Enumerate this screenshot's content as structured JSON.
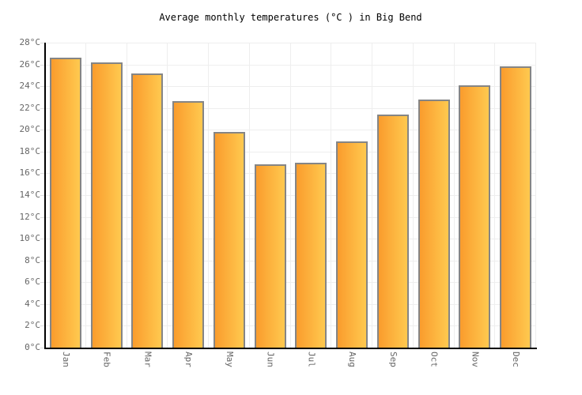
{
  "chart_data": {
    "type": "bar",
    "title": "Average monthly temperatures (°C ) in Big Bend",
    "categories": [
      "Jan",
      "Feb",
      "Mar",
      "Apr",
      "May",
      "Jun",
      "Jul",
      "Aug",
      "Sep",
      "Oct",
      "Nov",
      "Dec"
    ],
    "values": [
      26.6,
      26.2,
      25.2,
      22.6,
      19.8,
      16.8,
      17.0,
      18.9,
      21.4,
      22.8,
      24.1,
      25.8
    ],
    "unit": "°C",
    "xlabel": "",
    "ylabel": "",
    "ylim": [
      0,
      28
    ],
    "ytick_step": 2,
    "ytick_suffix": "°C",
    "grid": "on",
    "legend": "none",
    "colors": {
      "bar_gradient_left": "#fa9c2d",
      "bar_gradient_right": "#ffc94f",
      "bar_border": "#858585",
      "gridline": "#eeeeee",
      "tick": "#dddddd",
      "axis": "#000000",
      "label_text": "#666666",
      "title_text": "#000000",
      "background": "#ffffff"
    }
  }
}
